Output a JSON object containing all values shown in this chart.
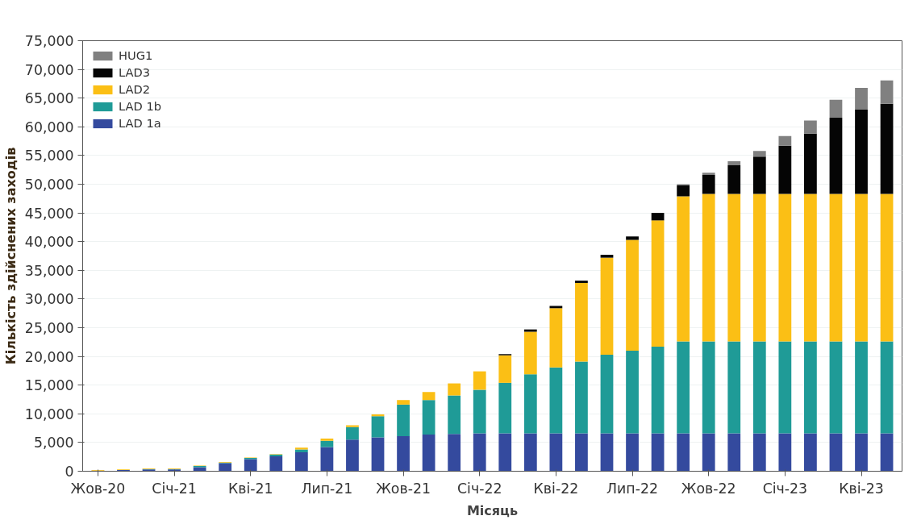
{
  "chart_data": {
    "type": "bar",
    "stacked": true,
    "xlabel": "Місяць",
    "ylabel": "Кількість здійснених заходів",
    "categories": [
      "Жов-20",
      null,
      null,
      "Січ-21",
      null,
      null,
      "Кві-21",
      null,
      null,
      "Лип-21",
      null,
      null,
      "Жов-21",
      null,
      null,
      "Січ-22",
      null,
      null,
      "Кві-22",
      null,
      null,
      "Лип-22",
      null,
      null,
      "Жов-22",
      null,
      null,
      "Січ-23",
      null,
      null,
      "Кві-23",
      null
    ],
    "series": [
      {
        "name": "LAD 1a",
        "color": "#344a9e",
        "values": [
          100,
          200,
          300,
          300,
          700,
          1400,
          2100,
          2600,
          3300,
          4200,
          5500,
          5900,
          6100,
          6400,
          6500,
          6600,
          6600,
          6600,
          6600,
          6600,
          6600,
          6600,
          6600,
          6600,
          6600,
          6600,
          6600,
          6600,
          6600,
          6600,
          6600,
          6600
        ]
      },
      {
        "name": "LAD 1b",
        "color": "#1f9b97",
        "values": [
          0,
          0,
          100,
          100,
          200,
          100,
          200,
          300,
          500,
          1100,
          2200,
          3700,
          5500,
          6000,
          6700,
          7600,
          8800,
          10300,
          11500,
          12500,
          13700,
          14400,
          15100,
          16000,
          16000,
          16000,
          16000,
          16000,
          16000,
          16000,
          16000,
          16000
        ]
      },
      {
        "name": "LAD2",
        "color": "#fbbf15",
        "values": [
          100,
          100,
          100,
          100,
          100,
          100,
          100,
          100,
          300,
          400,
          300,
          300,
          800,
          1400,
          2100,
          3200,
          4800,
          7400,
          10300,
          13700,
          16900,
          19300,
          22000,
          25300,
          25700,
          25700,
          25700,
          25700,
          25700,
          25700,
          25700,
          25700
        ]
      },
      {
        "name": "LAD3",
        "color": "#050505",
        "values": [
          0,
          0,
          0,
          0,
          0,
          0,
          0,
          0,
          0,
          0,
          0,
          0,
          0,
          0,
          0,
          0,
          200,
          400,
          400,
          400,
          500,
          600,
          1300,
          1900,
          3300,
          5000,
          6500,
          8400,
          10500,
          13300,
          14700,
          15700
        ]
      },
      {
        "name": "HUG1",
        "color": "#808080",
        "values": [
          0,
          0,
          0,
          0,
          0,
          0,
          0,
          0,
          0,
          0,
          0,
          0,
          0,
          0,
          0,
          0,
          0,
          0,
          0,
          0,
          0,
          0,
          0,
          200,
          400,
          700,
          1000,
          1700,
          2300,
          3100,
          3800,
          4100
        ]
      }
    ],
    "ylim": [
      0,
      75000
    ],
    "yticks": [
      {
        "value": 0,
        "label": "0"
      },
      {
        "value": 5000,
        "label": "5,000"
      },
      {
        "value": 10000,
        "label": "10,000"
      },
      {
        "value": 15000,
        "label": "15,000"
      },
      {
        "value": 20000,
        "label": "20,000"
      },
      {
        "value": 25000,
        "label": "25,000"
      },
      {
        "value": 30000,
        "label": "30,000"
      },
      {
        "value": 35000,
        "label": "35,000"
      },
      {
        "value": 40000,
        "label": "40,000"
      },
      {
        "value": 45000,
        "label": "45,000"
      },
      {
        "value": 50000,
        "label": "50,000"
      },
      {
        "value": 55000,
        "label": "55,000"
      },
      {
        "value": 60000,
        "label": "60,000"
      },
      {
        "value": 65000,
        "label": "65,000"
      },
      {
        "value": 70000,
        "label": "70,000"
      },
      {
        "value": 75000,
        "label": "75,000"
      }
    ],
    "grid": "y",
    "legend": "top left"
  }
}
